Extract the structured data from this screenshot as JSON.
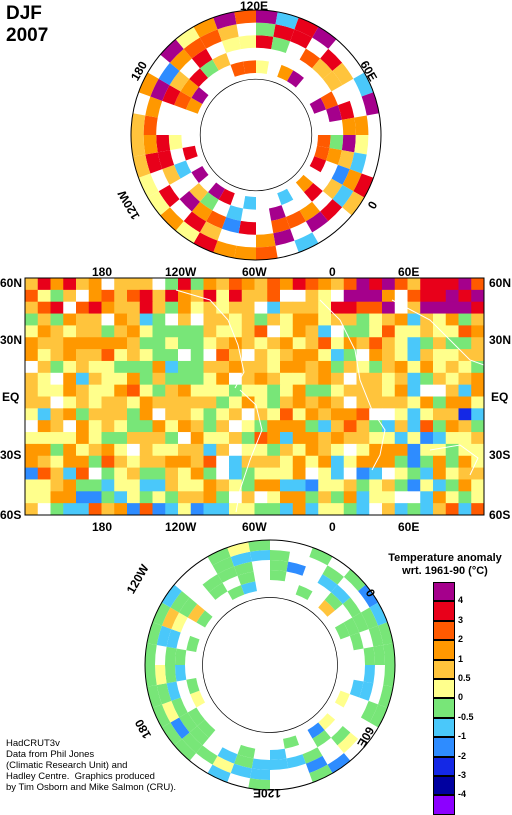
{
  "header": {
    "season": "DJF",
    "year": "2007"
  },
  "north_polar_map": {
    "longitude_labels": [
      "120E",
      "60E",
      "0",
      "120W",
      "180"
    ]
  },
  "equatorial_map": {
    "top_lon_labels": [
      "180",
      "120W",
      "60W",
      "0",
      "60E"
    ],
    "bottom_lon_labels": [
      "180",
      "120W",
      "60W",
      "0",
      "60E"
    ],
    "lat_labels": [
      "60N",
      "30N",
      "EQ",
      "30S",
      "60S"
    ]
  },
  "south_polar_map": {
    "longitude_labels": [
      "120W",
      "0",
      "60E",
      "120E",
      "180"
    ]
  },
  "legend": {
    "title": "Temperature anomaly",
    "subtitle": "wrt. 1961-90 (°C)",
    "labels": [
      "4",
      "3",
      "2",
      "1",
      "0.5",
      "0",
      "-0.5",
      "-1",
      "-2",
      "-3",
      "-4"
    ],
    "colors": [
      "#a5008c",
      "#e8001a",
      "#ff5a00",
      "#ff9800",
      "#ffc43c",
      "#ffff8c",
      "#78e678",
      "#4ac8fa",
      "#2e8cff",
      "#1428e6",
      "#0000a0",
      "#8c00ff"
    ]
  },
  "credit": "HadCRUT3v\nData from Phil Jones\n(Climatic Research Unit) and\nHadley Centre.  Graphics produced\nby Tim Osborn and Mike Salmon (CRU)."
}
